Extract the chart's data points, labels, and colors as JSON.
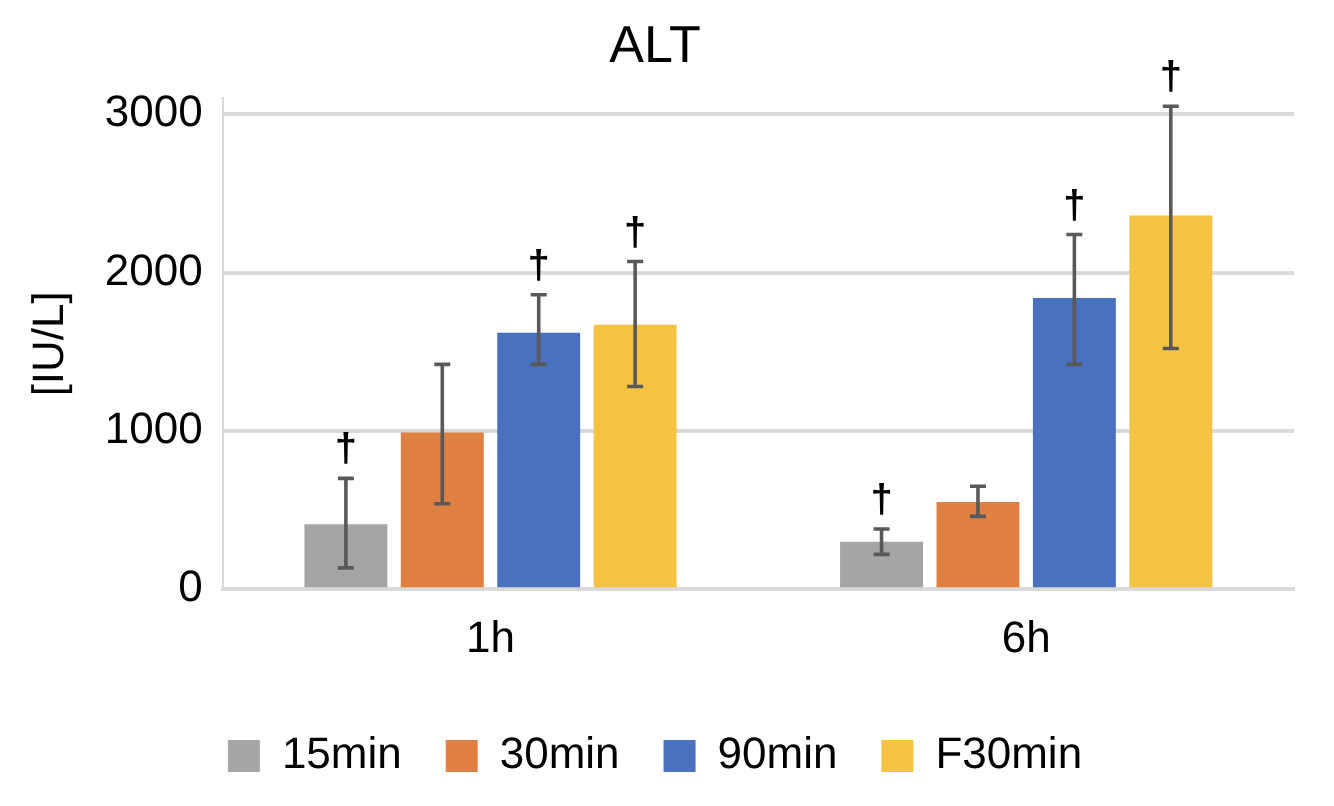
{
  "chart_data": {
    "type": "bar",
    "title": "ALT",
    "ylabel": "[IU/L]",
    "categories": [
      "1h",
      "6h"
    ],
    "series": [
      {
        "name": "15min",
        "color": "#a5a5a5",
        "values": [
          410,
          300
        ],
        "errors": [
          [
            135,
            700
          ],
          [
            220,
            380
          ]
        ],
        "value_labels": [
          "†",
          "†"
        ]
      },
      {
        "name": "30min",
        "color": "#e07f42",
        "values": [
          990,
          550
        ],
        "errors": [
          [
            540,
            1420
          ],
          [
            460,
            650
          ]
        ],
        "value_labels": [
          null,
          null
        ]
      },
      {
        "name": "90min",
        "color": "#4a70c0",
        "values": [
          1620,
          1840
        ],
        "errors": [
          [
            1420,
            1860
          ],
          [
            1420,
            2240
          ]
        ],
        "value_labels": [
          "†",
          "†"
        ]
      },
      {
        "name": "F30min",
        "color": "#f5c242",
        "values": [
          1670,
          2360
        ],
        "errors": [
          [
            1280,
            2070
          ],
          [
            1520,
            3050
          ]
        ],
        "value_labels": [
          "†",
          "†"
        ]
      }
    ],
    "ylim": [
      0,
      3100
    ],
    "yticks": [
      0,
      1000,
      2000,
      3000
    ],
    "grid": "y",
    "legend": "bottom"
  }
}
